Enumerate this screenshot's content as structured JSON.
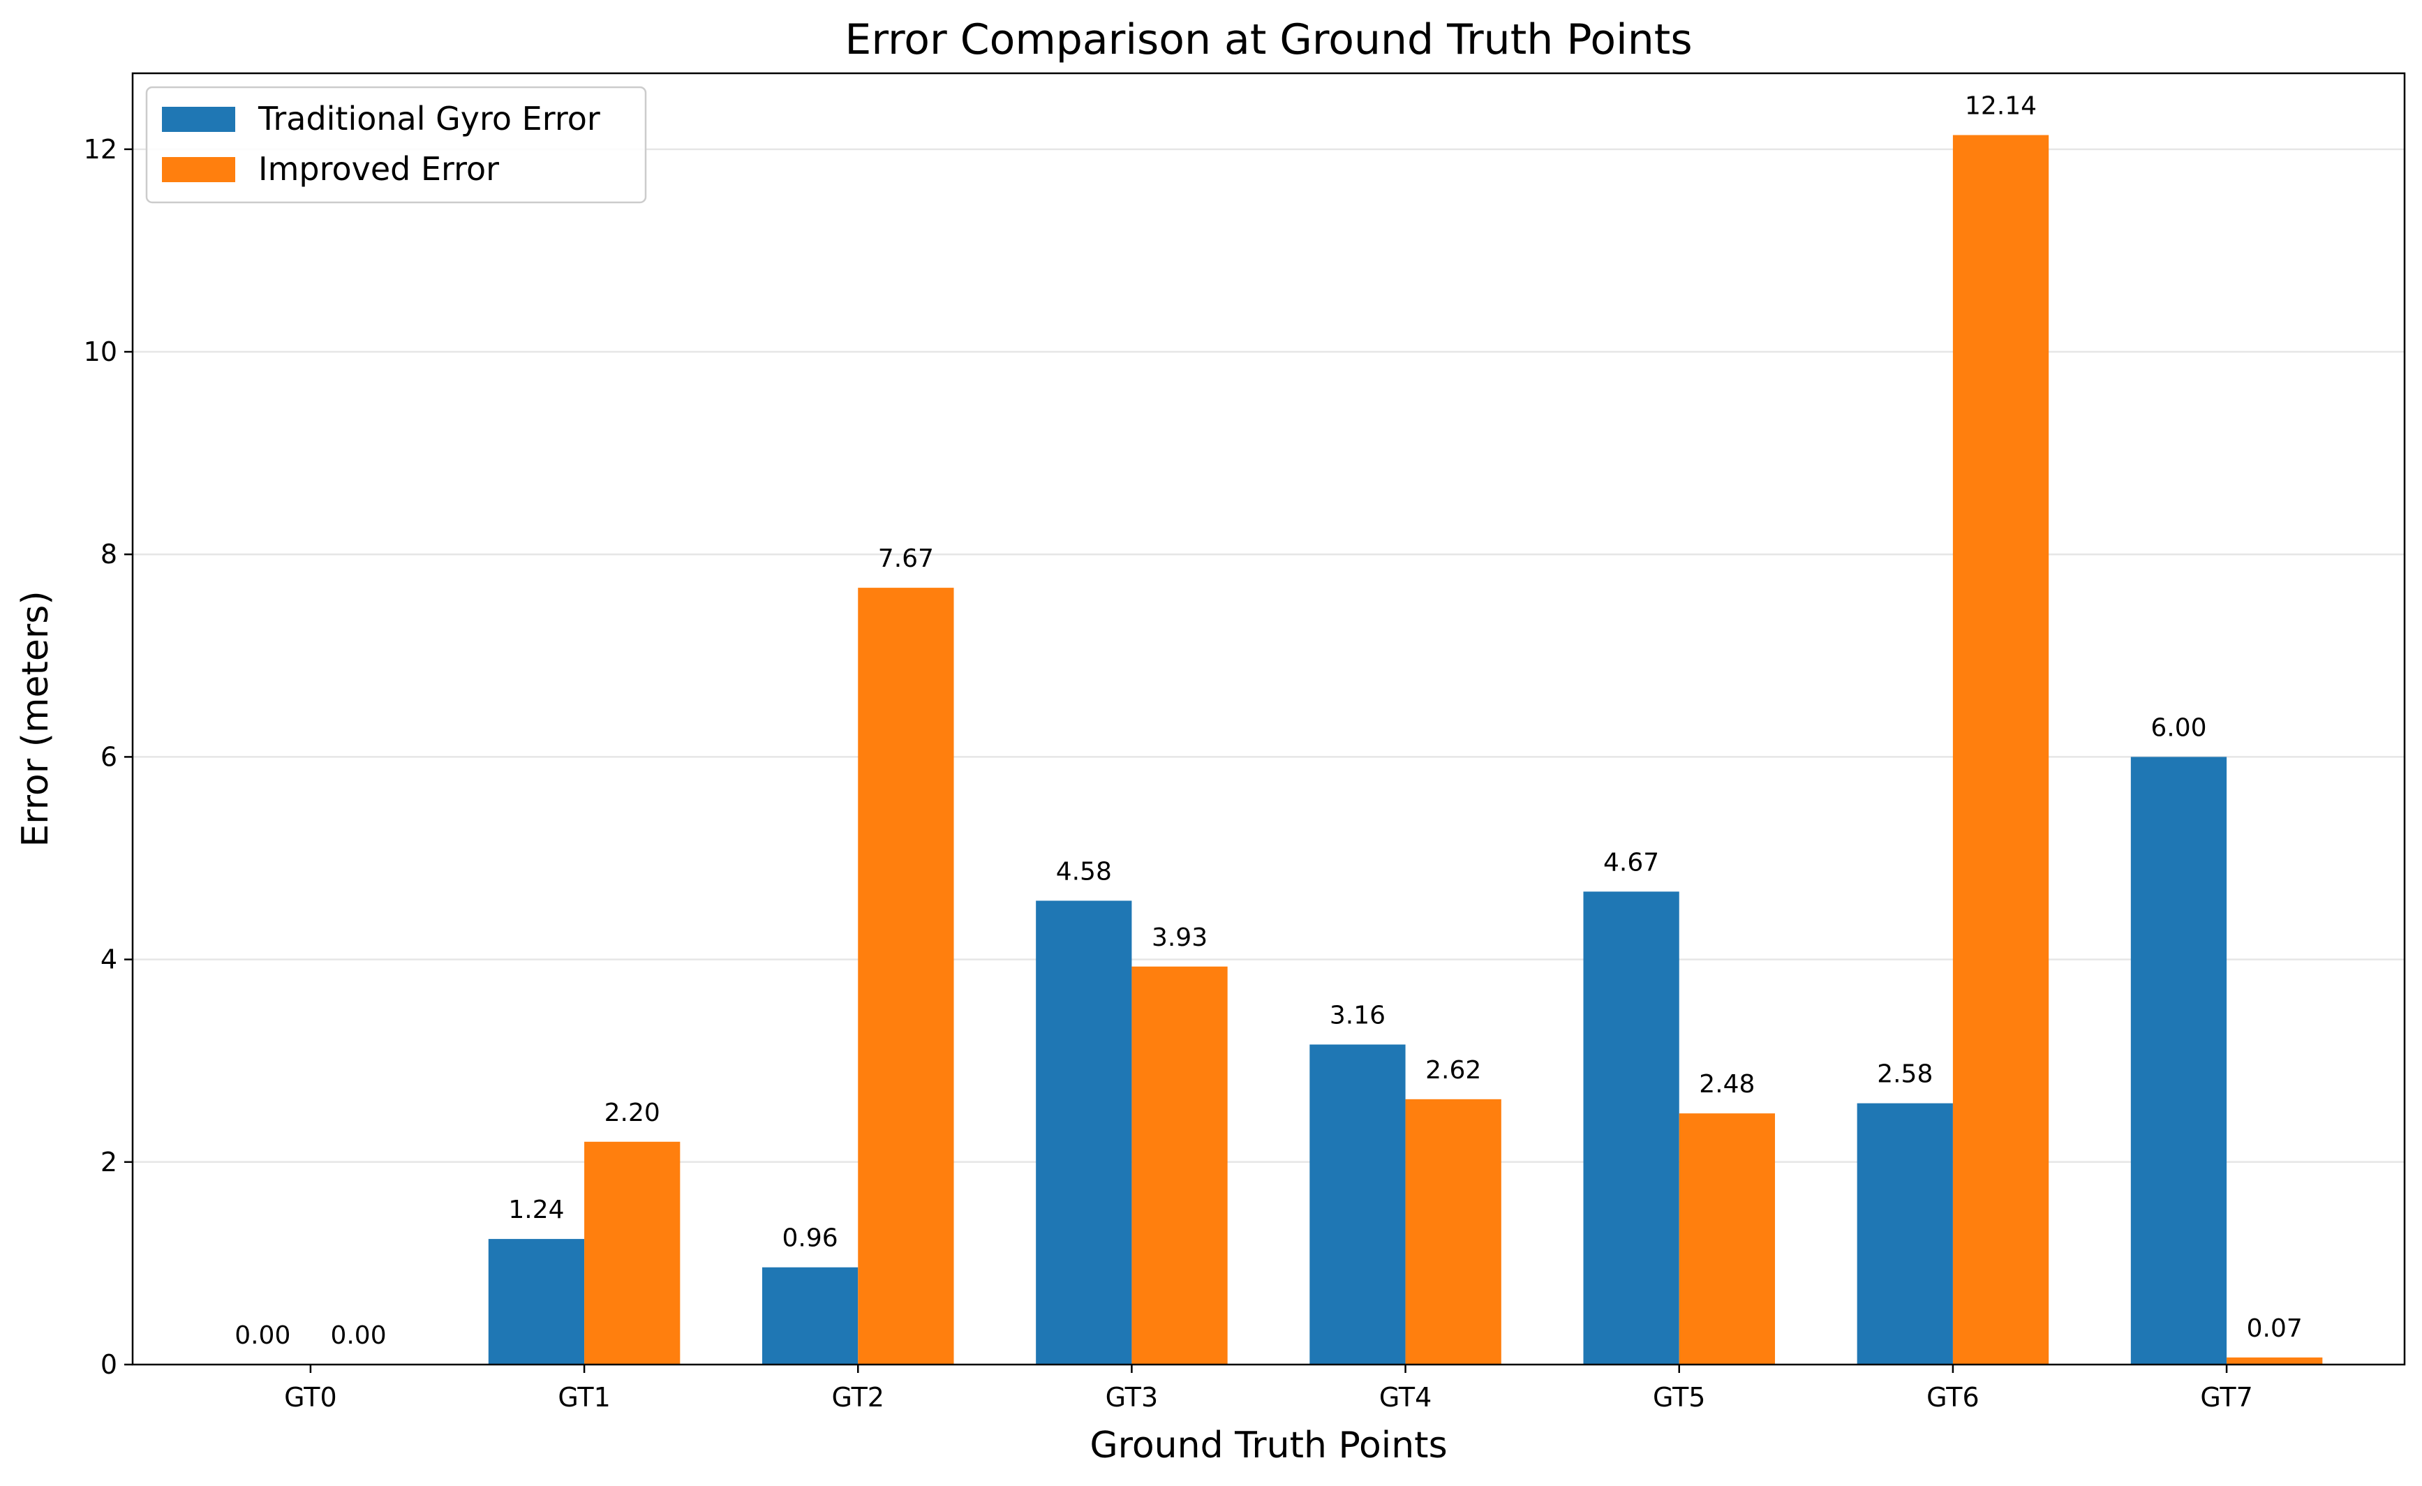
{
  "chart_data": {
    "type": "bar",
    "title": "Error Comparison at Ground Truth Points",
    "xlabel": "Ground Truth Points",
    "ylabel": "Error (meters)",
    "categories": [
      "GT0",
      "GT1",
      "GT2",
      "GT3",
      "GT4",
      "GT5",
      "GT6",
      "GT7"
    ],
    "series": [
      {
        "name": "Traditional Gyro Error",
        "color": "#1f77b4",
        "values": [
          0.0,
          1.24,
          0.96,
          4.58,
          3.16,
          4.67,
          2.58,
          6.0
        ]
      },
      {
        "name": "Improved Error",
        "color": "#ff7f0e",
        "values": [
          0.0,
          2.2,
          7.67,
          3.93,
          2.62,
          2.48,
          12.14,
          0.07
        ]
      }
    ],
    "ylim": [
      0,
      12.75
    ],
    "yticks": [
      0,
      2,
      4,
      6,
      8,
      10,
      12
    ],
    "grid": "y",
    "legend_position": "top-left",
    "value_label_format": "2 decimals"
  }
}
